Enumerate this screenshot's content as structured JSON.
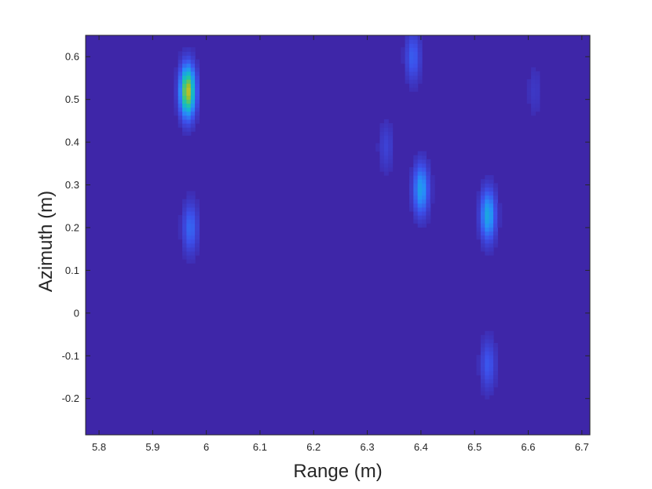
{
  "chart_data": {
    "type": "heatmap",
    "title": "",
    "xlabel": "Range (m)",
    "ylabel": "Azimuth (m)",
    "xlim": [
      5.775,
      6.715
    ],
    "ylim": [
      -0.285,
      0.65
    ],
    "xticks": [
      5.8,
      5.9,
      6,
      6.1,
      6.2,
      6.3,
      6.4,
      6.5,
      6.6,
      6.7
    ],
    "xtick_labels": [
      "5.8",
      "5.9",
      "6",
      "6.1",
      "6.2",
      "6.3",
      "6.4",
      "6.5",
      "6.6",
      "6.7"
    ],
    "yticks": [
      0.6,
      0.5,
      0.4,
      0.3,
      0.2,
      0.1,
      0,
      -0.1,
      -0.2
    ],
    "ytick_labels": [
      "0.6",
      "0.5",
      "0.4",
      "0.3",
      "0.2",
      "0.1",
      "0",
      "-0.1",
      "-0.2"
    ],
    "colormap": "parula",
    "background_color": "#3e26a8",
    "grid": false,
    "intensity_range": [
      0,
      1
    ],
    "peaks": [
      {
        "range": 5.965,
        "azimuth": 0.52,
        "intensity": 0.85
      },
      {
        "range": 5.97,
        "azimuth": 0.2,
        "intensity": 0.25
      },
      {
        "range": 6.385,
        "azimuth": 0.6,
        "intensity": 0.22
      },
      {
        "range": 6.335,
        "azimuth": 0.39,
        "intensity": 0.12
      },
      {
        "range": 6.4,
        "azimuth": 0.29,
        "intensity": 0.42
      },
      {
        "range": 6.525,
        "azimuth": 0.23,
        "intensity": 0.45
      },
      {
        "range": 6.525,
        "azimuth": -0.12,
        "intensity": 0.2
      },
      {
        "range": 6.612,
        "azimuth": 0.52,
        "intensity": 0.08
      }
    ]
  }
}
